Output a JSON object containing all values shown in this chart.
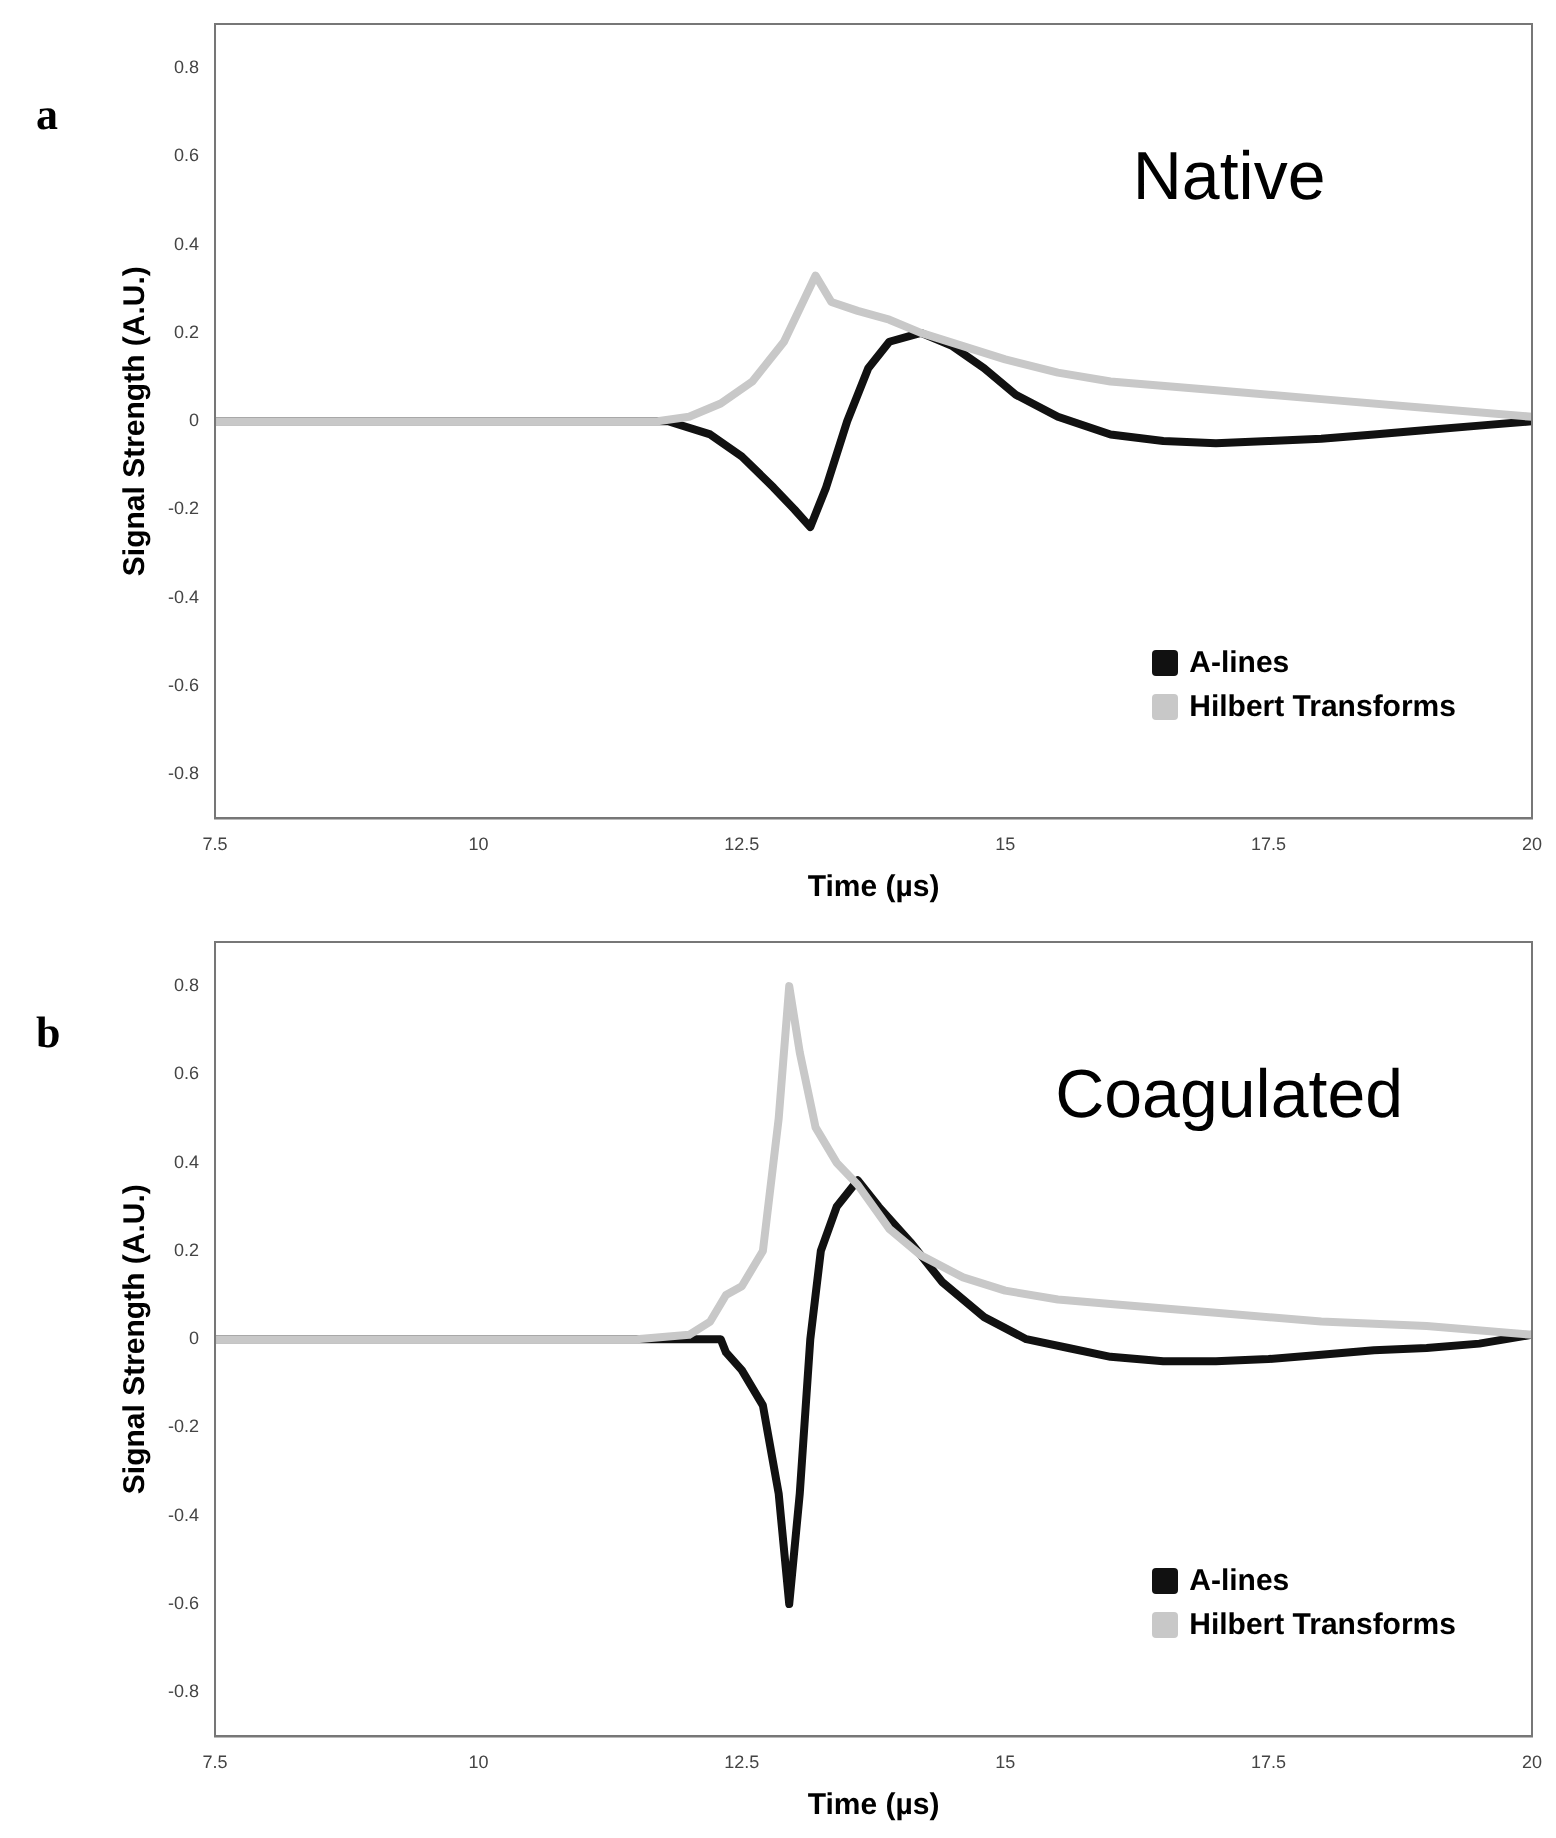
{
  "chart_data": [
    {
      "type": "line",
      "xlabel": "Time (µs)",
      "ylabel": "Signal Strength (A.U.)",
      "annotations": [
        "a",
        "Native"
      ],
      "xlim": [
        7.5,
        20
      ],
      "ylim": [
        -0.9,
        0.9
      ],
      "xticks": [
        7.5,
        10,
        12.5,
        15,
        17.5,
        20
      ],
      "yticks": [
        -0.8,
        -0.6,
        -0.4,
        -0.2,
        0,
        0.2,
        0.4,
        0.6,
        0.8
      ],
      "grid": false,
      "legend": "bottom right",
      "marker": "none",
      "line_style": "solid",
      "series": [
        {
          "name": "Hilbert Transforms",
          "color": "#c8c8c8",
          "x": [
            7.5,
            11.7,
            12.0,
            12.3,
            12.6,
            12.9,
            13.1,
            13.2,
            13.35,
            13.6,
            13.9,
            14.2,
            14.6,
            15,
            15.5,
            16,
            17,
            18,
            19,
            20
          ],
          "values": [
            0,
            0,
            0.01,
            0.04,
            0.09,
            0.18,
            0.28,
            0.33,
            0.27,
            0.25,
            0.23,
            0.2,
            0.17,
            0.14,
            0.11,
            0.09,
            0.07,
            0.05,
            0.03,
            0.01
          ]
        },
        {
          "name": "A-lines",
          "color": "#111111",
          "x": [
            7.5,
            11.8,
            12.2,
            12.5,
            12.8,
            13.0,
            13.15,
            13.3,
            13.5,
            13.7,
            13.9,
            14.2,
            14.5,
            14.8,
            15.1,
            15.5,
            16,
            16.5,
            17,
            17.5,
            18,
            18.5,
            19,
            19.5,
            20
          ],
          "values": [
            0,
            0,
            -0.03,
            -0.08,
            -0.15,
            -0.2,
            -0.24,
            -0.15,
            0,
            0.12,
            0.18,
            0.2,
            0.17,
            0.12,
            0.06,
            0.01,
            -0.03,
            -0.045,
            -0.05,
            -0.045,
            -0.04,
            -0.03,
            -0.02,
            -0.01,
            0
          ]
        }
      ]
    },
    {
      "type": "line",
      "xlabel": "Time (µs)",
      "ylabel": "Signal Strength (A.U.)",
      "annotations": [
        "b",
        "Coagulated"
      ],
      "xlim": [
        7.5,
        20
      ],
      "ylim": [
        -0.9,
        0.9
      ],
      "xticks": [
        7.5,
        10,
        12.5,
        15,
        17.5,
        20
      ],
      "yticks": [
        -0.8,
        -0.6,
        -0.4,
        -0.2,
        0,
        0.2,
        0.4,
        0.6,
        0.8
      ],
      "grid": false,
      "legend": "bottom right",
      "marker": "none",
      "line_style": "solid",
      "series": [
        {
          "name": "Hilbert Transforms",
          "color": "#c8c8c8",
          "x": [
            7.5,
            11.5,
            12.0,
            12.2,
            12.35,
            12.5,
            12.7,
            12.85,
            12.95,
            13.05,
            13.2,
            13.4,
            13.6,
            13.9,
            14.2,
            14.6,
            15,
            15.5,
            16,
            17,
            18,
            19,
            20
          ],
          "values": [
            0,
            0,
            0.01,
            0.04,
            0.1,
            0.12,
            0.2,
            0.5,
            0.8,
            0.65,
            0.48,
            0.4,
            0.35,
            0.25,
            0.19,
            0.14,
            0.11,
            0.09,
            0.08,
            0.06,
            0.04,
            0.03,
            0.01
          ]
        },
        {
          "name": "A-lines",
          "color": "#111111",
          "x": [
            7.5,
            12.3,
            12.35,
            12.5,
            12.7,
            12.85,
            12.95,
            13.05,
            13.15,
            13.25,
            13.4,
            13.6,
            13.8,
            14.1,
            14.4,
            14.8,
            15.2,
            15.6,
            16,
            16.5,
            17,
            17.5,
            18,
            18.5,
            19,
            19.5,
            20
          ],
          "values": [
            0,
            0,
            -0.03,
            -0.07,
            -0.15,
            -0.35,
            -0.6,
            -0.35,
            0,
            0.2,
            0.3,
            0.36,
            0.3,
            0.22,
            0.13,
            0.05,
            0,
            -0.02,
            -0.04,
            -0.05,
            -0.05,
            -0.045,
            -0.035,
            -0.025,
            -0.02,
            -0.01,
            0.01
          ]
        }
      ]
    }
  ]
}
